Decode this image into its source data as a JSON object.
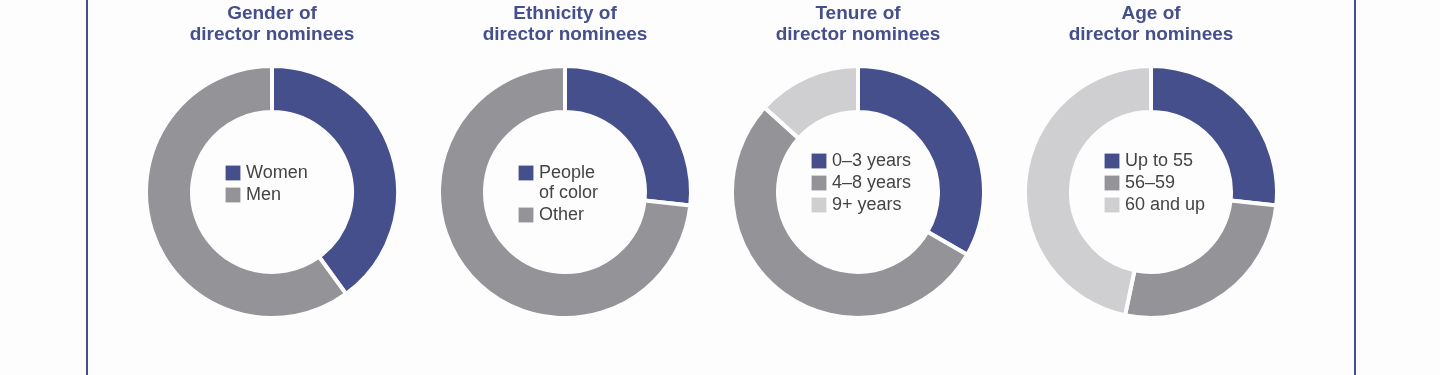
{
  "chart_data": [
    {
      "type": "donut",
      "title": "Gender of\ndirector nominees",
      "categories": [
        "Women",
        "Men"
      ],
      "values": [
        40,
        60
      ],
      "colors": [
        "#454f8c",
        "#939398"
      ],
      "legend": "center"
    },
    {
      "type": "donut",
      "title": "Ethnicity of\ndirector nominees",
      "categories": [
        "People\nof color",
        "Other"
      ],
      "values": [
        26.7,
        73.3
      ],
      "colors": [
        "#454f8c",
        "#939398"
      ],
      "legend": "center"
    },
    {
      "type": "donut",
      "title": "Tenure of\ndirector nominees",
      "categories": [
        "0–3 years",
        "4–8 years",
        "9+ years"
      ],
      "values": [
        33.3,
        53.4,
        13.3
      ],
      "colors": [
        "#454f8c",
        "#939398",
        "#cfcfd1"
      ],
      "legend": "center"
    },
    {
      "type": "donut",
      "title": "Age of\ndirector nominees",
      "categories": [
        "Up to 55",
        "56–59",
        "60 and up"
      ],
      "values": [
        26.7,
        26.6,
        46.7
      ],
      "colors": [
        "#454f8c",
        "#939398",
        "#cfcfd1"
      ],
      "legend": "center"
    }
  ]
}
